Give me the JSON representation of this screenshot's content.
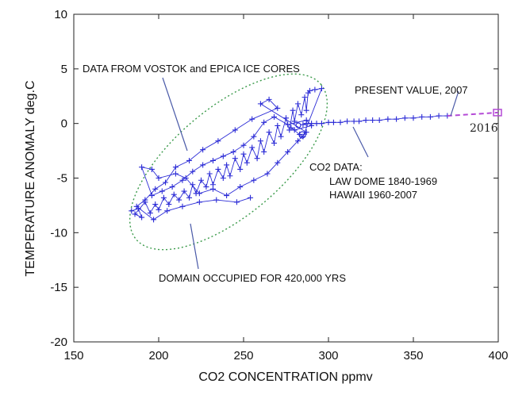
{
  "chart_data": {
    "type": "scatter",
    "title": "",
    "xlabel": "CO2 CONCENTRATION ppmv",
    "ylabel": "TEMPERATURE ANOMALY deg.C",
    "xlim": [
      150,
      400
    ],
    "ylim": [
      -20,
      10
    ],
    "x_ticks": [
      "150",
      "200",
      "250",
      "300",
      "350",
      "400"
    ],
    "y_ticks": [
      "10",
      "5",
      "0",
      "-5",
      "-10",
      "-15",
      "-20"
    ],
    "grid": false,
    "colors": {
      "series": "#2b2bd6",
      "ellipse": "#3a9a4a",
      "extension": "#b44ad6"
    },
    "series": [
      {
        "name": "",
        "values": [
          [
            184,
            -8.0
          ],
          [
            188,
            -7.8
          ],
          [
            190,
            -8.6
          ],
          [
            186,
            -8.3
          ],
          [
            192,
            -7.2
          ],
          [
            195,
            -8.2
          ],
          [
            198,
            -7.4
          ],
          [
            200,
            -7.9
          ],
          [
            203,
            -6.8
          ],
          [
            206,
            -7.4
          ],
          [
            209,
            -6.5
          ],
          [
            212,
            -7.0
          ],
          [
            215,
            -6.2
          ],
          [
            218,
            -6.8
          ],
          [
            220,
            -5.6
          ],
          [
            222,
            -6.4
          ],
          [
            225,
            -5.2
          ],
          [
            228,
            -5.8
          ],
          [
            230,
            -4.6
          ],
          [
            232,
            -5.6
          ],
          [
            235,
            -4.2
          ],
          [
            238,
            -5.0
          ],
          [
            240,
            -3.8
          ],
          [
            242,
            -4.8
          ],
          [
            245,
            -3.2
          ],
          [
            248,
            -4.2
          ],
          [
            250,
            -2.8
          ],
          [
            252,
            -3.6
          ],
          [
            255,
            -2.2
          ],
          [
            258,
            -3.2
          ],
          [
            260,
            -1.6
          ],
          [
            262,
            -2.6
          ],
          [
            265,
            -0.8
          ],
          [
            268,
            -1.8
          ],
          [
            270,
            -0.2
          ],
          [
            272,
            -1.2
          ],
          [
            275,
            0.5
          ],
          [
            277,
            -0.6
          ],
          [
            279,
            1.2
          ],
          [
            280,
            0.2
          ],
          [
            282,
            1.8
          ],
          [
            284,
            0.8
          ],
          [
            286,
            2.4
          ],
          [
            287,
            1.2
          ],
          [
            288,
            2.8
          ],
          [
            289,
            3.0
          ],
          [
            292,
            3.1
          ],
          [
            296,
            3.2
          ],
          [
            285,
            -1.2
          ],
          [
            283,
            -1.0
          ],
          [
            278,
            -0.4
          ],
          [
            280,
            -0.6
          ],
          [
            290,
            -0.2
          ],
          [
            287,
            0.3
          ],
          [
            276,
            -0.1
          ],
          [
            268,
            0.6
          ],
          [
            262,
            0.1
          ],
          [
            256,
            -1.2
          ],
          [
            250,
            -2.0
          ],
          [
            244,
            -2.6
          ],
          [
            238,
            -3.0
          ],
          [
            232,
            -3.4
          ],
          [
            226,
            -3.8
          ],
          [
            220,
            -4.4
          ],
          [
            214,
            -5.2
          ],
          [
            208,
            -5.8
          ],
          [
            202,
            -6.2
          ],
          [
            196,
            -6.6
          ],
          [
            190,
            -4.0
          ],
          [
            196,
            -4.2
          ],
          [
            200,
            -5.0
          ],
          [
            210,
            -4.6
          ],
          [
            216,
            -5.0
          ],
          [
            224,
            -6.4
          ],
          [
            232,
            -6.0
          ],
          [
            240,
            -6.6
          ],
          [
            248,
            -5.8
          ],
          [
            256,
            -5.2
          ],
          [
            264,
            -4.6
          ],
          [
            270,
            -3.6
          ],
          [
            276,
            -2.6
          ],
          [
            282,
            -1.6
          ],
          [
            287,
            -0.8
          ],
          [
            260,
            1.8
          ],
          [
            265,
            2.2
          ],
          [
            270,
            1.4
          ],
          [
            255,
            0.4
          ],
          [
            245,
            -0.6
          ],
          [
            235,
            -1.6
          ],
          [
            226,
            -2.4
          ],
          [
            218,
            -3.4
          ],
          [
            210,
            -4.0
          ],
          [
            204,
            -5.4
          ],
          [
            198,
            -6.0
          ],
          [
            192,
            -7.0
          ],
          [
            187,
            -7.6
          ],
          [
            197,
            -8.8
          ],
          [
            205,
            -8.0
          ],
          [
            214,
            -7.6
          ],
          [
            224,
            -7.2
          ],
          [
            234,
            -7.0
          ],
          [
            246,
            -7.2
          ],
          [
            254,
            -6.8
          ]
        ]
      },
      {
        "name": "",
        "values": [
          [
            285,
            -0.1
          ],
          [
            287,
            0.0
          ],
          [
            290,
            0.0
          ],
          [
            293,
            0.0
          ],
          [
            296,
            0.0
          ],
          [
            300,
            0.1
          ],
          [
            303,
            0.1
          ],
          [
            307,
            0.1
          ],
          [
            311,
            0.2
          ],
          [
            315,
            0.2
          ],
          [
            318,
            0.2
          ],
          [
            322,
            0.3
          ],
          [
            326,
            0.3
          ],
          [
            330,
            0.3
          ],
          [
            335,
            0.4
          ],
          [
            340,
            0.4
          ],
          [
            345,
            0.5
          ],
          [
            350,
            0.5
          ],
          [
            355,
            0.6
          ],
          [
            360,
            0.6
          ],
          [
            365,
            0.7
          ],
          [
            370,
            0.7
          ]
        ]
      }
    ],
    "extension": {
      "values": [
        [
          370,
          0.7
        ],
        [
          400,
          1.0
        ]
      ],
      "label": "2016"
    },
    "annotations": [
      {
        "id": "ice_cores",
        "text": "DATA FROM VOSTOK and EPICA ICE CORES"
      },
      {
        "id": "present",
        "text": "PRESENT VALUE, 2007"
      },
      {
        "id": "co2_data_1",
        "text": "CO2 DATA:"
      },
      {
        "id": "co2_data_2",
        "text": "LAW DOME 1840-1969"
      },
      {
        "id": "co2_data_3",
        "text": "HAWAII 1960-2007"
      },
      {
        "id": "domain",
        "text": "DOMAIN OCCUPIED FOR 420,000 YRS"
      }
    ]
  }
}
